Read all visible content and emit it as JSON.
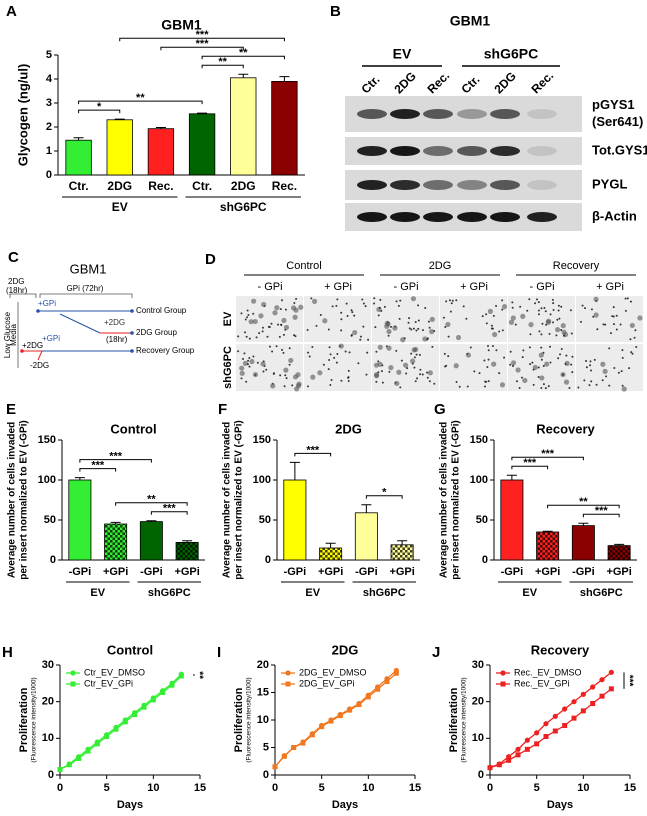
{
  "chart_data": [
    {
      "type": "bar",
      "panel": "A",
      "title": "GBM1",
      "y_label": [
        "Glycogen (ng/ul)"
      ],
      "categories": [
        "Ctr.",
        "2DG",
        "Rec.",
        "Ctr.",
        "2DG",
        "Rec."
      ],
      "group_labels": [
        "EV",
        "shG6PC"
      ],
      "values": [
        1.45,
        2.3,
        1.93,
        2.55,
        4.05,
        3.9
      ],
      "errors": [
        0.1,
        0.03,
        0.05,
        0.03,
        0.15,
        0.2
      ],
      "colors": [
        "#33ee33",
        "#ffff00",
        "#ff2020",
        "#006400",
        "#ffff99",
        "#8b0000"
      ],
      "ylim": [
        0,
        5
      ],
      "yticks": [
        0,
        1,
        2,
        3,
        4,
        5
      ],
      "annotations": [
        {
          "text": "*",
          "from": 0,
          "to": 1
        },
        {
          "text": "**",
          "from": 3,
          "to": 4
        },
        {
          "text": "**",
          "from": 0,
          "to": 3
        },
        {
          "text": "**",
          "from": 3,
          "to": 5
        },
        {
          "text": "***",
          "from": 2,
          "to": 4
        },
        {
          "text": "***",
          "from": 1,
          "to": 5
        }
      ]
    },
    {
      "type": "bar",
      "panel": "E",
      "title": "Control",
      "y_label": [
        "Average number of cells invaded",
        "per insert normalized to EV (-GPi)"
      ],
      "categories": [
        "-GPi",
        "+GPi",
        "-GPi",
        "+GPi"
      ],
      "group_labels": [
        "EV",
        "shG6PC"
      ],
      "values": [
        100,
        45,
        48,
        22
      ],
      "errors": [
        3,
        2,
        1,
        2
      ],
      "colors": [
        "#33ee33",
        "#33ee33",
        "#006400",
        "#006400"
      ],
      "hatch": [
        false,
        true,
        false,
        true
      ],
      "ylim": [
        0,
        150
      ],
      "yticks": [
        0,
        50,
        100,
        150
      ],
      "annotations": [
        {
          "text": "***",
          "from": 0,
          "to": 1
        },
        {
          "text": "***",
          "from": 2,
          "to": 3
        },
        {
          "text": "**",
          "from": 1,
          "to": 3
        },
        {
          "text": "***",
          "from": 0,
          "to": 2
        }
      ]
    },
    {
      "type": "bar",
      "panel": "F",
      "title": "2DG",
      "y_label": [
        "Average number of cells invaded",
        "per insert normalized to EV (-GPi)"
      ],
      "categories": [
        "-GPi",
        "+GPi",
        "-GPi",
        "+GPi"
      ],
      "group_labels": [
        "EV",
        "shG6PC"
      ],
      "values": [
        100,
        15,
        59,
        19
      ],
      "errors": [
        22,
        6,
        10,
        5
      ],
      "colors": [
        "#ffff00",
        "#ffff00",
        "#ffff99",
        "#ffff99"
      ],
      "hatch": [
        false,
        true,
        false,
        true
      ],
      "ylim": [
        0,
        150
      ],
      "yticks": [
        0,
        50,
        100,
        150
      ],
      "annotations": [
        {
          "text": "***",
          "from": 0,
          "to": 1
        },
        {
          "text": "*",
          "from": 2,
          "to": 3
        }
      ]
    },
    {
      "type": "bar",
      "panel": "G",
      "title": "Recovery",
      "y_label": [
        "Average number of cells invaded",
        "per insert normalized to EV (-GPi)"
      ],
      "categories": [
        "-GPi",
        "+GPi",
        "-GPi",
        "+GPi"
      ],
      "group_labels": [
        "EV",
        "shG6PC"
      ],
      "values": [
        100,
        35,
        43,
        18
      ],
      "errors": [
        6,
        1,
        3,
        1.5
      ],
      "colors": [
        "#ff2020",
        "#ff2020",
        "#8b0000",
        "#8b0000"
      ],
      "hatch": [
        false,
        true,
        false,
        true
      ],
      "ylim": [
        0,
        150
      ],
      "yticks": [
        0,
        50,
        100,
        150
      ],
      "annotations": [
        {
          "text": "***",
          "from": 0,
          "to": 1
        },
        {
          "text": "***",
          "from": 2,
          "to": 3
        },
        {
          "text": "**",
          "from": 1,
          "to": 3
        },
        {
          "text": "***",
          "from": 0,
          "to": 2
        }
      ]
    },
    {
      "type": "line",
      "panel": "H",
      "title": "Control",
      "x": [
        0,
        1,
        2,
        3,
        4,
        5,
        6,
        7,
        8,
        9,
        10,
        11,
        12,
        13
      ],
      "series": [
        {
          "name": "Ctr_EV_DMSO",
          "color": "#33ee33",
          "marker": "circle",
          "values": [
            1.5,
            3,
            5,
            7,
            9,
            11,
            13,
            15,
            17,
            19,
            21,
            23,
            25,
            27.5
          ]
        },
        {
          "name": "Ctr_EV_GPi",
          "color": "#33ee33",
          "marker": "square",
          "values": [
            1.5,
            2.8,
            4.5,
            6.5,
            8.5,
            10.5,
            12.5,
            14.5,
            16.5,
            18.5,
            20.5,
            22.5,
            24.5,
            27
          ]
        }
      ],
      "xlim": [
        0,
        15
      ],
      "xticks": [
        0,
        5,
        10,
        15
      ],
      "ylim": [
        0,
        30
      ],
      "yticks": [
        0,
        10,
        20,
        30
      ],
      "x_label": "Days",
      "y_label": "Proliferation",
      "y_sublabel": "(Fluorescence intensity/1000)",
      "legend": "upper left",
      "annotation": "**"
    },
    {
      "type": "line",
      "panel": "I",
      "title": "2DG",
      "x": [
        0,
        1,
        2,
        3,
        4,
        5,
        6,
        7,
        8,
        9,
        10,
        11,
        12,
        13
      ],
      "series": [
        {
          "name": "2DG_EV_DMSO",
          "color": "#f07820",
          "marker": "circle",
          "values": [
            1.5,
            3.5,
            5,
            6,
            7.5,
            9,
            10,
            11,
            12,
            13,
            14.5,
            16,
            17.5,
            19
          ]
        },
        {
          "name": "2DG_EV_GPi",
          "color": "#f07820",
          "marker": "square",
          "values": [
            1.5,
            3.4,
            5,
            5.8,
            7.3,
            8.8,
            9.8,
            10.8,
            11.8,
            12.8,
            14.2,
            15.6,
            17,
            18.5
          ]
        }
      ],
      "xlim": [
        0,
        15
      ],
      "xticks": [
        0,
        5,
        10,
        15
      ],
      "ylim": [
        0,
        20
      ],
      "yticks": [
        0,
        5,
        10,
        15,
        20
      ],
      "x_label": "Days",
      "y_label": "Proliferation",
      "y_sublabel": "(Fluorescence intensity/1000)",
      "legend": "upper left"
    },
    {
      "type": "line",
      "panel": "J",
      "title": "Recovery",
      "x": [
        0,
        1,
        2,
        3,
        4,
        5,
        6,
        7,
        8,
        9,
        10,
        11,
        12,
        13
      ],
      "series": [
        {
          "name": "Rec._EV_DMSO",
          "color": "#ee2020",
          "marker": "circle",
          "values": [
            2,
            3,
            5,
            7,
            9.5,
            11.5,
            14,
            16,
            18,
            20,
            22,
            24,
            26,
            28
          ]
        },
        {
          "name": "Rec._EV_GPi",
          "color": "#ee2020",
          "marker": "square",
          "values": [
            2,
            2.8,
            4,
            5.5,
            7,
            8.5,
            10.5,
            12,
            13.5,
            15.5,
            17.5,
            19.5,
            21.5,
            23.5
          ]
        }
      ],
      "xlim": [
        0,
        15
      ],
      "xticks": [
        0,
        5,
        10,
        15
      ],
      "ylim": [
        0,
        30
      ],
      "yticks": [
        0,
        10,
        20,
        30
      ],
      "x_label": "Days",
      "y_label": "Proliferation",
      "y_sublabel": "(Fluorescence intensity/1000)",
      "legend": "upper left",
      "annotation": "***"
    }
  ],
  "blot": {
    "panel": "B",
    "title": "GBM1",
    "groups": [
      "EV",
      "shG6PC"
    ],
    "lanes": [
      "Ctr.",
      "2DG",
      "Rec.",
      "Ctr.",
      "2DG",
      "Rec."
    ],
    "rows": [
      [
        "pGYS1",
        "(Ser641)"
      ],
      [
        "Tot.GYS1"
      ],
      [
        "PYGL"
      ],
      [
        "β-Actin"
      ]
    ]
  },
  "scheme": {
    "panel": "C",
    "title": "GBM1",
    "items": [
      "2DG",
      "(18hr)",
      "GPi (72hr)",
      "+GPi",
      "Control Group",
      "+2DG",
      "(18hr)",
      "2DG Group",
      "Low Glucose",
      "Media",
      "+GPi",
      "+2DG",
      "-2DG",
      "Recovery Group"
    ]
  },
  "micrographs": {
    "panel": "D",
    "conditions": [
      "Control",
      "2DG",
      "Recovery"
    ],
    "treatments": [
      "- GPi",
      "+ GPi",
      "- GPi",
      "+ GPi",
      "- GPi",
      "+ GPi"
    ],
    "rows": [
      "EV",
      "shG6PC"
    ]
  }
}
